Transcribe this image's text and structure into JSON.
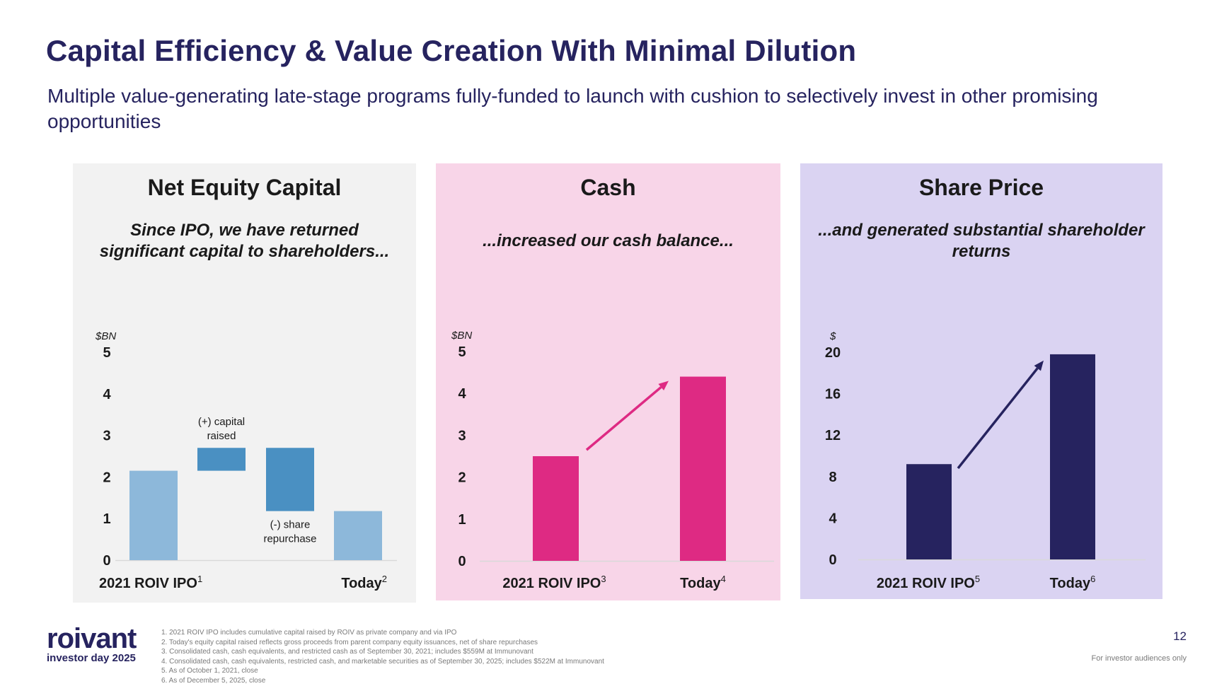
{
  "header": {
    "title": "Capital Efficiency & Value Creation With Minimal Dilution",
    "subtitle": "Multiple value-generating late-stage programs fully-funded to launch with cushion to selectively invest in other promising opportunities"
  },
  "colors": {
    "navy": "#26235f",
    "magenta": "#de2a83",
    "light_blue": "#8db8da",
    "mid_blue": "#4a90c2",
    "panel_gray": "#f2f2f2",
    "panel_pink": "#f8d5e8",
    "panel_lavender": "#dad3f2"
  },
  "chart_data": [
    {
      "type": "bar",
      "subtype": "waterfall",
      "title": "Net Equity Capital",
      "subtitle": "Since IPO, we have returned significant capital to shareholders...",
      "ylabel": "$BN",
      "ylim": [
        0,
        5
      ],
      "yticks": [
        0,
        1,
        2,
        3,
        4,
        5
      ],
      "categories": [
        "2021 ROIV IPO",
        "(+) capital raised",
        "(-) share repurchase",
        "Today"
      ],
      "category_labels": [
        "2021 ROIV IPO",
        "Today"
      ],
      "footnote_refs": [
        "1",
        "2"
      ],
      "annotations": [
        "(+) capital raised",
        "(-) share repurchase"
      ],
      "bars": [
        {
          "name": "2021 ROIV IPO",
          "start": 0,
          "end": 2.15
        },
        {
          "name": "(+) capital raised",
          "start": 2.15,
          "end": 2.7
        },
        {
          "name": "(-) share repurchase",
          "start": 2.7,
          "end": 1.18
        },
        {
          "name": "Today",
          "start": 0,
          "end": 1.18
        }
      ]
    },
    {
      "type": "bar",
      "title": "Cash",
      "subtitle": "...increased our cash balance...",
      "ylabel": "$BN",
      "ylim": [
        0,
        5
      ],
      "yticks": [
        0,
        1,
        2,
        3,
        4,
        5
      ],
      "categories": [
        "2021 ROIV IPO",
        "Today"
      ],
      "footnote_refs": [
        "3",
        "4"
      ],
      "values": [
        2.5,
        4.4
      ]
    },
    {
      "type": "bar",
      "title": "Share Price",
      "subtitle": "...and generated substantial shareholder returns",
      "ylabel": "$",
      "ylim": [
        0,
        20
      ],
      "yticks": [
        0,
        4,
        8,
        12,
        16,
        20
      ],
      "categories": [
        "2021 ROIV IPO",
        "Today"
      ],
      "footnote_refs": [
        "5",
        "6"
      ],
      "values": [
        9.2,
        19.8
      ]
    }
  ],
  "footnotes": [
    "1. 2021 ROIV IPO includes cumulative capital raised by ROIV as private company and via IPO",
    "2. Today's equity capital raised reflects gross proceeds from parent company equity issuances, net of share repurchases",
    "3. Consolidated cash, cash equivalents, and restricted cash as of September 30, 2021; includes $559M at Immunovant",
    "4. Consolidated cash, cash equivalents, restricted cash, and marketable securities as of September 30, 2025; includes $522M at Immunovant",
    "5. As of October 1, 2021, close",
    "6. As of December 5, 2025, close"
  ],
  "footer": {
    "logo_word": "roivant",
    "logo_tag": "investor day 2025",
    "page_number": "12",
    "audience": "For investor audiences only"
  }
}
